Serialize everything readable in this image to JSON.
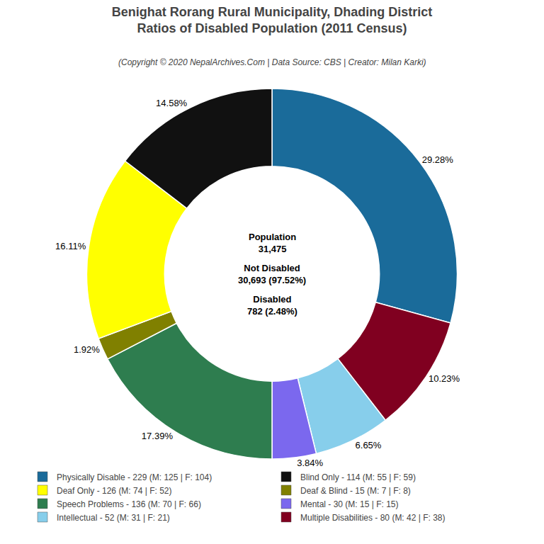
{
  "chart_data": {
    "type": "pie",
    "title": "Benighat Rorang Rural Municipality, Dhading District\nRatios of Disabled Population (2011 Census)",
    "subtitle": "(Copyright © 2020 NepalArchives.Com | Data Source: CBS | Creator: Milan Karki)",
    "categories": [
      "Physically Disable - 229 (M: 125 | F: 104)",
      "Multiple Disabilities - 80 (M: 42 | F: 38)",
      "Intellectual - 52 (M: 31 | F: 21)",
      "Mental - 30 (M: 15 | F: 15)",
      "Speech Problems - 136 (M: 70 | F: 66)",
      "Deaf & Blind - 15 (M: 7 | F: 8)",
      "Deaf Only - 126 (M: 74 | F: 52)",
      "Blind Only - 114 (M: 55 | F: 59)"
    ],
    "values": [
      29.28,
      10.23,
      6.65,
      3.84,
      17.39,
      1.92,
      16.11,
      14.58
    ],
    "value_labels": [
      "29.28%",
      "10.23%",
      "6.65%",
      "3.84%",
      "17.39%",
      "1.92%",
      "16.11%",
      "14.58%"
    ],
    "colors": [
      "#1a6b9a",
      "#800020",
      "#87ceeb",
      "#7b68ee",
      "#2e7d4f",
      "#808000",
      "#ffff00",
      "#111111"
    ],
    "data_labels": true,
    "annotations": [
      "Population\n31,475",
      "Not Disabled\n30,693 (97.52%)",
      "Disabled\n782 (2.48%)"
    ],
    "legend": "bottom",
    "legend_items": [
      {
        "name": "Physically Disable - 229 (M: 125 | F: 104)",
        "color": "#1a6b9a"
      },
      {
        "name": "Blind Only - 114 (M: 55 | F: 59)",
        "color": "#111111"
      },
      {
        "name": "Deaf Only - 126 (M: 74 | F: 52)",
        "color": "#ffff00"
      },
      {
        "name": "Deaf & Blind - 15 (M: 7 | F: 8)",
        "color": "#808000"
      },
      {
        "name": "Speech Problems - 136 (M: 70 | F: 66)",
        "color": "#2e7d4f"
      },
      {
        "name": "Mental - 30 (M: 15 | F: 15)",
        "color": "#7b68ee"
      },
      {
        "name": "Intellectual - 52 (M: 31 | F: 21)",
        "color": "#87ceeb"
      },
      {
        "name": "Multiple Disabilities - 80 (M: 42 | F: 38)",
        "color": "#800020"
      }
    ]
  }
}
